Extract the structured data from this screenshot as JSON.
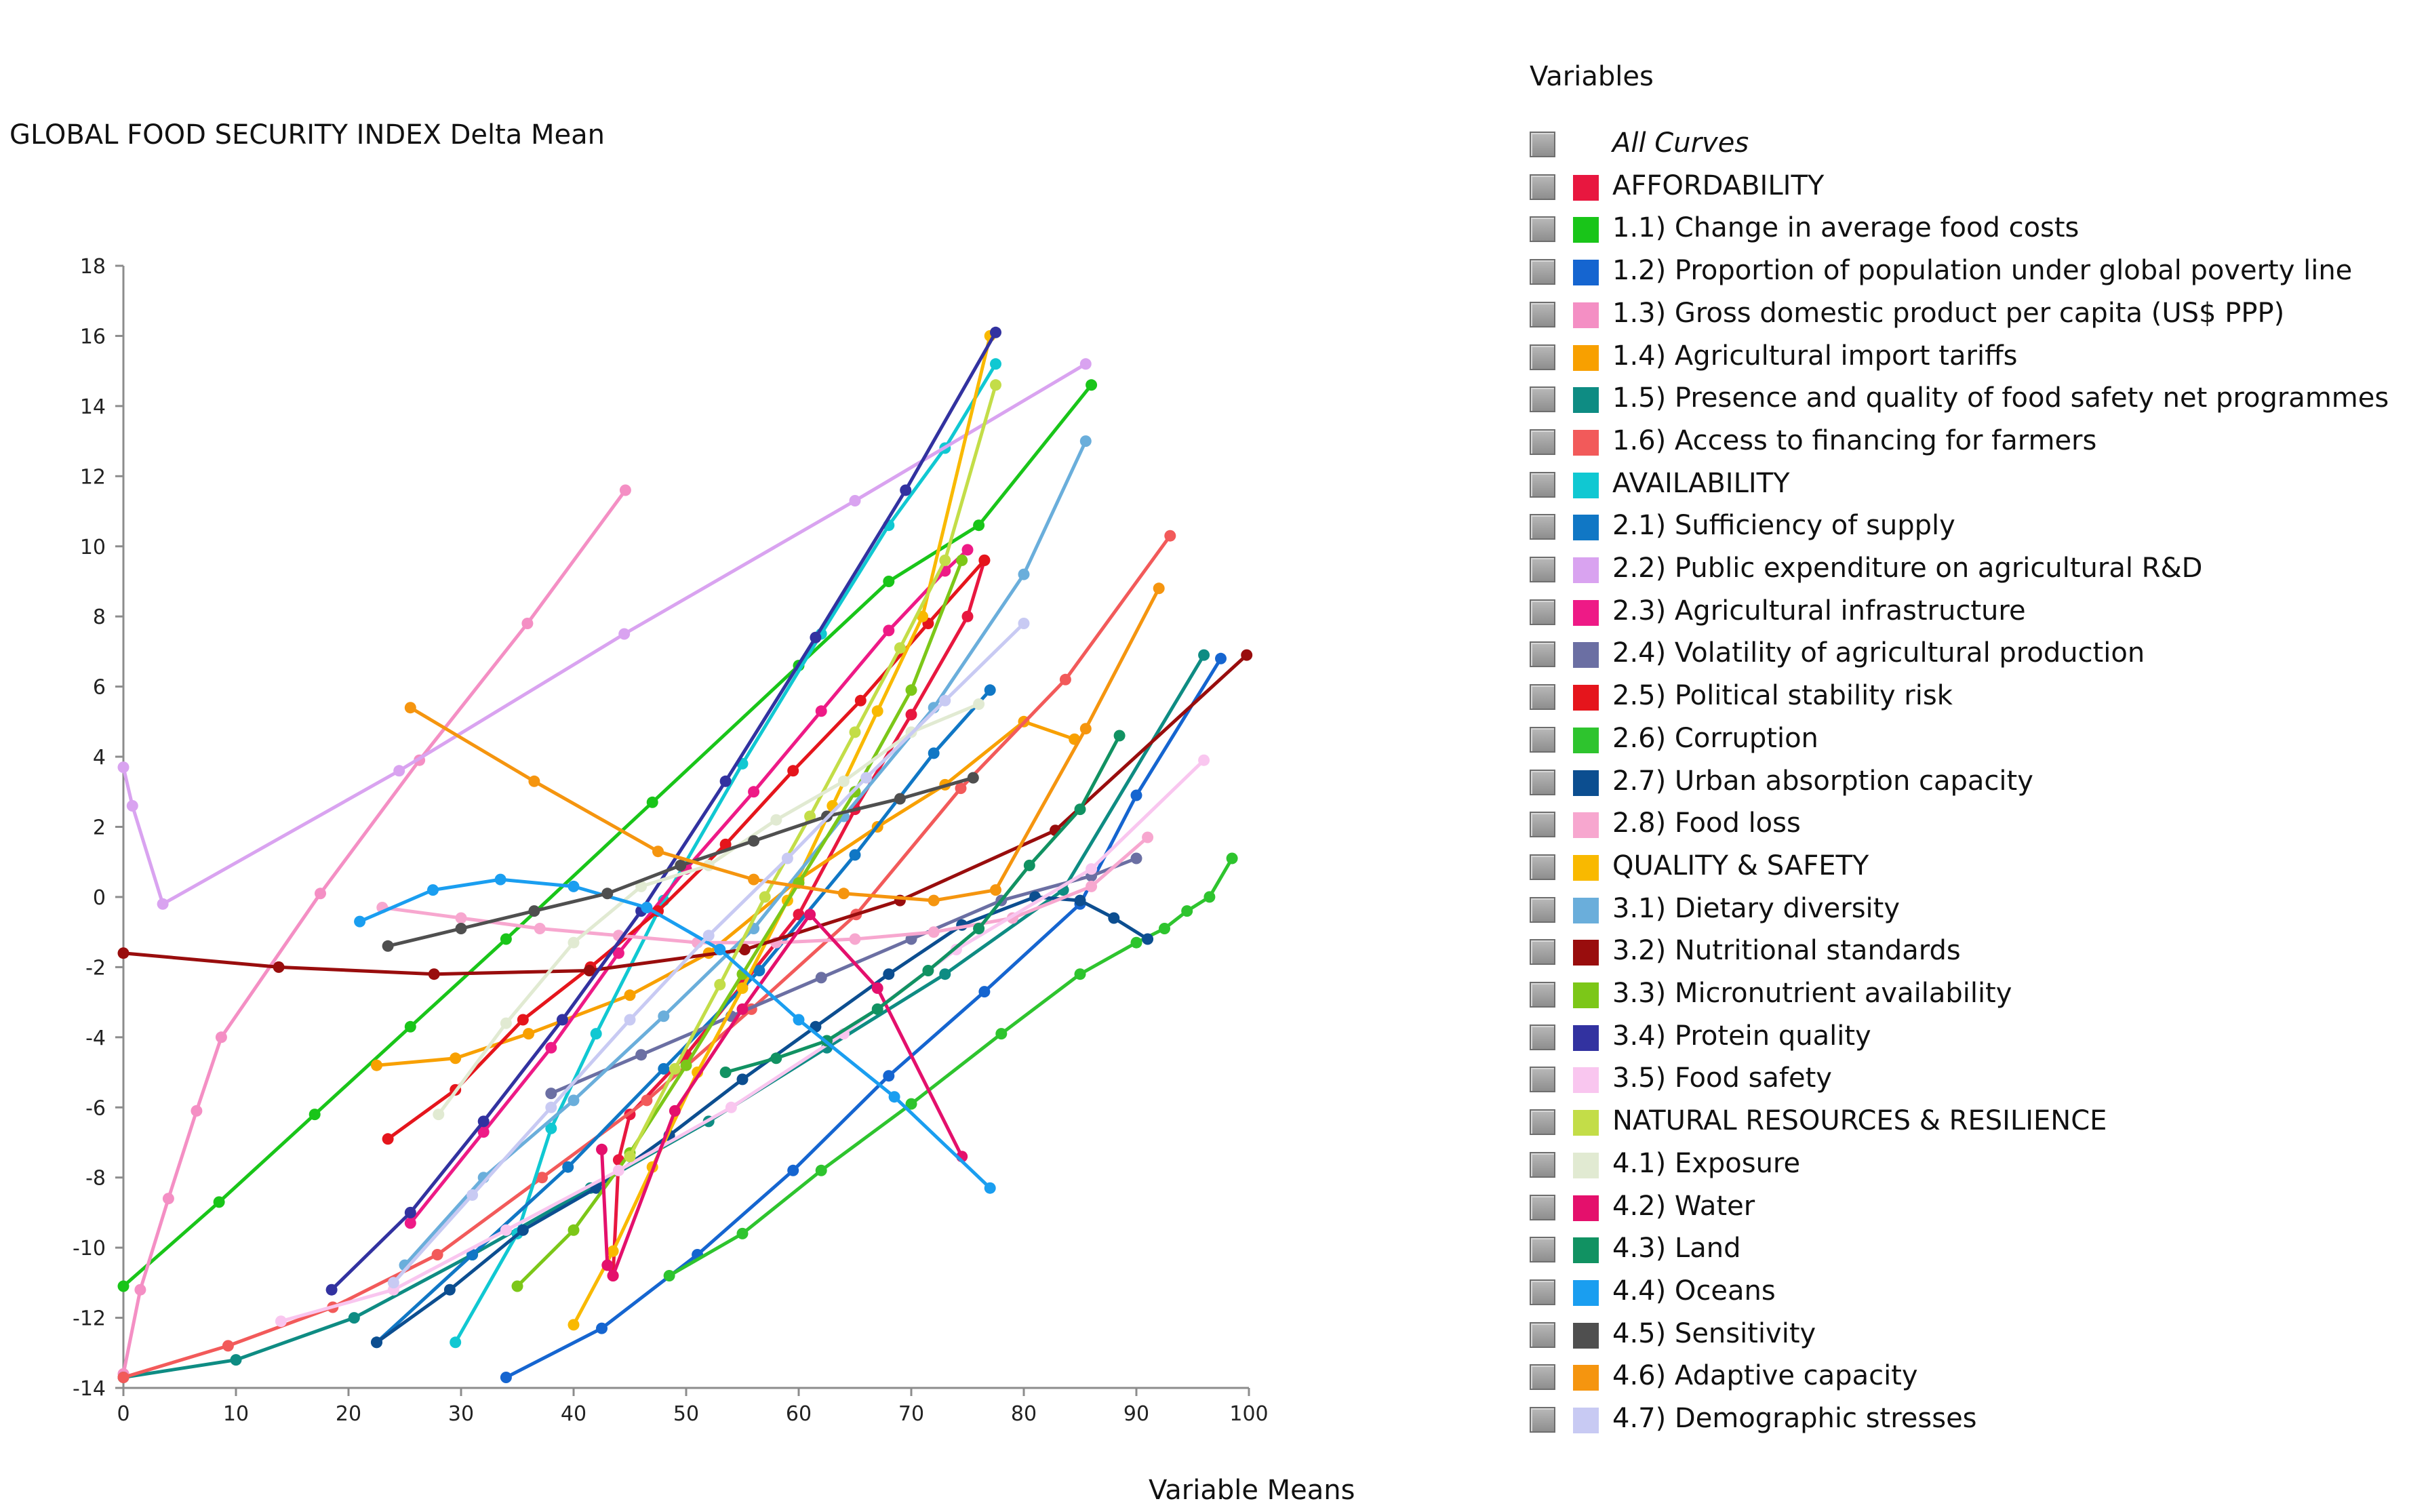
{
  "chart_data": {
    "type": "line",
    "title": "",
    "ylabel": "GLOBAL FOOD SECURITY INDEX Delta Mean",
    "xlabel": "Variable Means",
    "xlim": [
      0,
      100
    ],
    "ylim": [
      -14,
      18
    ],
    "xticks": [
      0,
      10,
      20,
      30,
      40,
      50,
      60,
      70,
      80,
      90,
      100
    ],
    "yticks": [
      -14,
      -12,
      -10,
      -8,
      -6,
      -4,
      -2,
      0,
      2,
      4,
      6,
      8,
      10,
      12,
      14,
      16,
      18
    ],
    "grid": false,
    "legend_title": "Variables",
    "legend_position": "right",
    "all_curves_label": "All Curves",
    "series": [
      {
        "name": "AFFORDABILITY",
        "color": "#e8173f",
        "x": [
          43.5,
          44,
          45,
          50,
          55,
          60,
          65,
          70,
          75,
          76.5
        ],
        "y": [
          -10.8,
          -7.5,
          -6.2,
          -4.5,
          -2.5,
          -0.5,
          2.5,
          5.2,
          8,
          9.6
        ]
      },
      {
        "name": "1.1) Change in average food costs",
        "color": "#19c519",
        "x": [
          0,
          8.5,
          17,
          25.5,
          34,
          47,
          60,
          68,
          76,
          86
        ],
        "y": [
          -11.1,
          -8.7,
          -6.2,
          -3.7,
          -1.2,
          2.7,
          6.6,
          9,
          10.6,
          14.6
        ]
      },
      {
        "name": "1.2) Proportion of population under global poverty line",
        "color": "#1565d0",
        "x": [
          34,
          42.5,
          51,
          59.5,
          68,
          76.5,
          85,
          90,
          97.5
        ],
        "y": [
          -13.7,
          -12.3,
          -10.2,
          -7.8,
          -5.1,
          -2.7,
          -0.2,
          2.9,
          6.8
        ]
      },
      {
        "name": "1.3) Gross domestic product per capita (US$ PPP)",
        "color": "#f48fc4",
        "x": [
          0,
          1.5,
          4,
          6.5,
          8.7,
          17.5,
          26.3,
          35.9,
          44.6
        ],
        "y": [
          -13.6,
          -11.2,
          -8.6,
          -6.1,
          -4,
          0.1,
          3.9,
          7.8,
          11.6
        ]
      },
      {
        "name": "1.4) Agricultural import tariffs",
        "color": "#f8a000",
        "x": [
          22.5,
          29.5,
          36,
          45,
          52,
          60,
          67,
          73,
          80,
          84.5
        ],
        "y": [
          -4.8,
          -4.6,
          -3.9,
          -2.8,
          -1.6,
          0.5,
          2,
          3.2,
          5,
          4.5
        ]
      },
      {
        "name": "1.5) Presence and quality of food safety net programmes",
        "color": "#0e8c83",
        "x": [
          0,
          10,
          20.5,
          31,
          41.5,
          52,
          62.5,
          73,
          83.5,
          96
        ],
        "y": [
          -13.7,
          -13.2,
          -12,
          -10.2,
          -8.3,
          -6.4,
          -4.3,
          -2.2,
          0.2,
          6.9
        ]
      },
      {
        "name": "1.6) Access to financing for farmers",
        "color": "#f25a5a",
        "x": [
          0,
          9.3,
          18.6,
          27.9,
          37.2,
          46.5,
          55.8,
          65.1,
          74.4,
          83.7,
          93
        ],
        "y": [
          -13.7,
          -12.8,
          -11.7,
          -10.2,
          -8,
          -5.8,
          -3.2,
          -0.5,
          3.1,
          6.2,
          10.3
        ]
      },
      {
        "name": "AVAILABILITY",
        "color": "#10c8d2",
        "x": [
          29.5,
          35,
          38,
          42,
          48,
          55,
          62,
          68,
          73,
          77.5
        ],
        "y": [
          -12.7,
          -9.6,
          -6.6,
          -3.9,
          -0.1,
          3.8,
          7.5,
          10.6,
          12.8,
          15.2
        ]
      },
      {
        "name": "2.1) Sufficiency of supply",
        "color": "#1077c5",
        "x": [
          22.5,
          31,
          39.5,
          48,
          56.5,
          65,
          72,
          77
        ],
        "y": [
          -12.7,
          -10.2,
          -7.7,
          -4.9,
          -2.1,
          1.2,
          4.1,
          5.9
        ]
      },
      {
        "name": "2.2) Public expenditure on agricultural R&D",
        "color": "#d9a3f0",
        "x": [
          0,
          0.8,
          3.5,
          24.5,
          44.5,
          65,
          85.5
        ],
        "y": [
          3.7,
          2.6,
          -0.2,
          3.6,
          7.5,
          11.3,
          15.2
        ]
      },
      {
        "name": "2.3) Agricultural infrastructure",
        "color": "#ee1a86",
        "x": [
          25.5,
          32,
          38,
          44,
          50,
          56,
          62,
          68,
          73,
          75
        ],
        "y": [
          -9.3,
          -6.7,
          -4.3,
          -1.6,
          0.8,
          3,
          5.3,
          7.6,
          9.3,
          9.9
        ]
      },
      {
        "name": "2.4) Volatility of agricultural production",
        "color": "#6b6fa3",
        "x": [
          38,
          46,
          54,
          62,
          70,
          78,
          86,
          90
        ],
        "y": [
          -5.6,
          -4.5,
          -3.4,
          -2.3,
          -1.2,
          -0.1,
          0.6,
          1.1
        ]
      },
      {
        "name": "2.5) Political stability risk",
        "color": "#e5151c",
        "x": [
          23.5,
          29.5,
          35.5,
          41.5,
          47.5,
          53.5,
          59.5,
          65.5,
          71.5,
          76.5
        ],
        "y": [
          -6.9,
          -5.5,
          -3.5,
          -2,
          -0.4,
          1.5,
          3.6,
          5.6,
          7.8,
          9.6
        ]
      },
      {
        "name": "2.6) Corruption",
        "color": "#2ec42e",
        "x": [
          48.5,
          55,
          62,
          70,
          78,
          85,
          90,
          92.5,
          94.5,
          96.5,
          98.5
        ],
        "y": [
          -10.8,
          -9.6,
          -7.8,
          -5.9,
          -3.9,
          -2.2,
          -1.3,
          -0.9,
          -0.4,
          0,
          1.1
        ]
      },
      {
        "name": "2.7) Urban absorption capacity",
        "color": "#0c4e90",
        "x": [
          22.5,
          29,
          35.5,
          42,
          48.5,
          55,
          61.5,
          68,
          74.5,
          81,
          85,
          88,
          91
        ],
        "y": [
          -12.7,
          -11.2,
          -9.5,
          -8.3,
          -6.8,
          -5.2,
          -3.7,
          -2.2,
          -0.8,
          0,
          -0.1,
          -0.6,
          -1.2
        ]
      },
      {
        "name": "2.8) Food loss",
        "color": "#f7a7cf",
        "x": [
          23,
          30,
          37,
          44,
          51,
          58,
          65,
          72,
          79,
          86,
          91
        ],
        "y": [
          -0.3,
          -0.6,
          -0.9,
          -1.1,
          -1.3,
          -1.3,
          -1.2,
          -1,
          -0.6,
          0.3,
          1.7
        ]
      },
      {
        "name": "QUALITY & SAFETY",
        "color": "#f9b900",
        "x": [
          40,
          43.5,
          47,
          51,
          55,
          59,
          63,
          67,
          71,
          77
        ],
        "y": [
          -12.2,
          -10.1,
          -7.7,
          -5,
          -2.6,
          -0.1,
          2.6,
          5.3,
          8,
          16
        ]
      },
      {
        "name": "3.1) Dietary diversity",
        "color": "#6aaedb",
        "x": [
          25,
          32,
          40,
          48,
          56,
          64,
          72,
          80,
          85.5
        ],
        "y": [
          -10.5,
          -8,
          -5.8,
          -3.4,
          -0.9,
          2.3,
          5.4,
          9.2,
          13
        ]
      },
      {
        "name": "3.2) Nutritional standards",
        "color": "#990d0d",
        "x": [
          0,
          13.8,
          27.6,
          41.4,
          55.2,
          69,
          82.8,
          99.8
        ],
        "y": [
          -1.6,
          -2,
          -2.2,
          -2.1,
          -1.5,
          -0.1,
          1.9,
          6.9
        ]
      },
      {
        "name": "3.3) Micronutrient availability",
        "color": "#7cc718",
        "x": [
          35,
          40,
          45,
          50,
          55,
          60,
          65,
          70,
          74.5
        ],
        "y": [
          -11.1,
          -9.5,
          -7.3,
          -4.8,
          -2.2,
          0.4,
          3,
          5.9,
          9.6
        ]
      },
      {
        "name": "3.4) Protein quality",
        "color": "#3232a0",
        "x": [
          18.5,
          25.5,
          32,
          39,
          46,
          53.5,
          61.5,
          69.5,
          77.5
        ],
        "y": [
          -11.2,
          -9,
          -6.4,
          -3.5,
          -0.4,
          3.3,
          7.4,
          11.6,
          16.1
        ]
      },
      {
        "name": "3.5) Food safety",
        "color": "#f9c6ef",
        "x": [
          14,
          24,
          34,
          44,
          54,
          64,
          74,
          86,
          96
        ],
        "y": [
          -12.1,
          -11.2,
          -9.5,
          -7.8,
          -6,
          -3.9,
          -1.5,
          0.8,
          3.9
        ]
      },
      {
        "name": "NATURAL RESOURCES & RESILIENCE",
        "color": "#c3dd48",
        "x": [
          45,
          49,
          53,
          57,
          61,
          65,
          69,
          73,
          77.5
        ],
        "y": [
          -7.4,
          -4.9,
          -2.5,
          0,
          2.3,
          4.7,
          7.1,
          9.6,
          14.6
        ]
      },
      {
        "name": "4.1) Exposure",
        "color": "#e1ead2",
        "x": [
          28,
          34,
          40,
          46,
          52,
          58,
          64,
          70,
          76
        ],
        "y": [
          -6.2,
          -3.6,
          -1.3,
          0.3,
          0.9,
          2.2,
          3.3,
          4.7,
          5.5
        ]
      },
      {
        "name": "4.2) Water",
        "color": "#e4106c",
        "x": [
          42.5,
          43,
          43.5,
          49,
          55,
          61,
          67,
          74.5
        ],
        "y": [
          -7.2,
          -10.5,
          -10.8,
          -6.1,
          -3.2,
          -0.5,
          -2.6,
          -7.4
        ]
      },
      {
        "name": "4.3) Land",
        "color": "#119262",
        "x": [
          53.5,
          58,
          62.5,
          67,
          71.5,
          76,
          80.5,
          85,
          88.5
        ],
        "y": [
          -5,
          -4.6,
          -4.1,
          -3.2,
          -2.1,
          -0.9,
          0.9,
          2.5,
          4.6
        ]
      },
      {
        "name": "4.4) Oceans",
        "color": "#1a9ef0",
        "x": [
          21,
          27.5,
          33.5,
          40,
          46.5,
          53,
          60,
          68.5,
          77
        ],
        "y": [
          -0.7,
          0.2,
          0.5,
          0.3,
          -0.3,
          -1.5,
          -3.5,
          -5.7,
          -8.3
        ]
      },
      {
        "name": "4.5) Sensitivity",
        "color": "#4f4f4f",
        "x": [
          23.5,
          30,
          36.5,
          43,
          49.5,
          56,
          62.5,
          69,
          75.5
        ],
        "y": [
          -1.4,
          -0.9,
          -0.4,
          0.1,
          0.9,
          1.6,
          2.3,
          2.8,
          3.4
        ]
      },
      {
        "name": "4.6) Adaptive capacity",
        "color": "#f5950f",
        "x": [
          25.5,
          36.5,
          47.5,
          56,
          64,
          72,
          77.5,
          85.5,
          92
        ],
        "y": [
          5.4,
          3.3,
          1.3,
          0.5,
          0.1,
          -0.1,
          0.2,
          4.8,
          8.8
        ]
      },
      {
        "name": "4.7) Demographic stresses",
        "color": "#c8caf3",
        "x": [
          24,
          31,
          38,
          45,
          52,
          59,
          66,
          73,
          80
        ],
        "y": [
          -11,
          -8.5,
          -6,
          -3.5,
          -1.1,
          1.1,
          3.4,
          5.6,
          7.8
        ]
      }
    ]
  }
}
